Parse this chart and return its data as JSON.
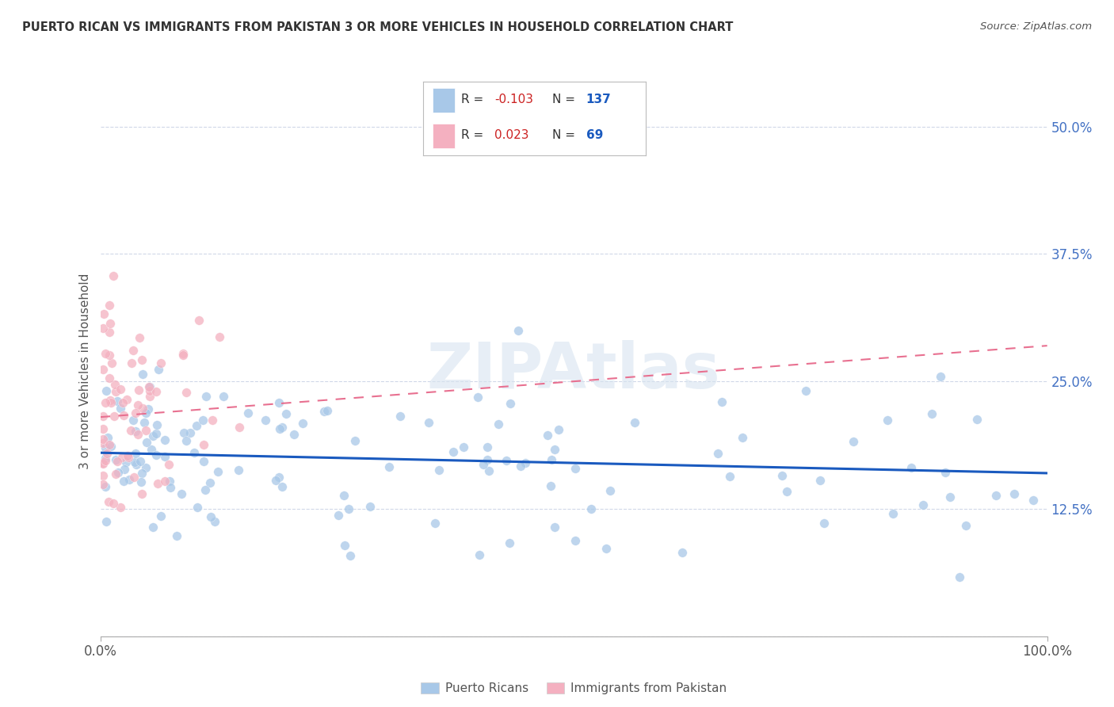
{
  "title": "PUERTO RICAN VS IMMIGRANTS FROM PAKISTAN 3 OR MORE VEHICLES IN HOUSEHOLD CORRELATION CHART",
  "source": "Source: ZipAtlas.com",
  "ylabel": "3 or more Vehicles in Household",
  "xlim": [
    0,
    100
  ],
  "ylim": [
    0,
    52
  ],
  "yticks": [
    0,
    12.5,
    25.0,
    37.5,
    50.0
  ],
  "ytick_labels": [
    "",
    "12.5%",
    "25.0%",
    "37.5%",
    "50.0%"
  ],
  "legend_entries": [
    {
      "label": "Puerto Ricans",
      "scatter_color": "#a8c8e8",
      "R": -0.103,
      "N": 137
    },
    {
      "label": "Immigrants from Pakistan",
      "scatter_color": "#f4b0c0",
      "R": 0.023,
      "N": 69
    }
  ],
  "watermark": "ZIPAtlas",
  "bg_color": "#ffffff",
  "grid_color": "#d0d8e8",
  "scatter_blue": "#a8c8e8",
  "scatter_pink": "#f4b0c0",
  "trend_blue": "#1a5abf",
  "trend_pink": "#e87090",
  "legend_text_color": "#333333",
  "legend_R_neg_color": "#cc2222",
  "legend_R_pos_color": "#cc2222",
  "legend_N_color": "#1a5abf",
  "right_axis_color": "#4472c4",
  "blue_line_y0": 18.0,
  "blue_line_y1": 16.0,
  "pink_line_x0": 0,
  "pink_line_x1": 100,
  "pink_line_y0": 21.5,
  "pink_line_y1": 28.5
}
